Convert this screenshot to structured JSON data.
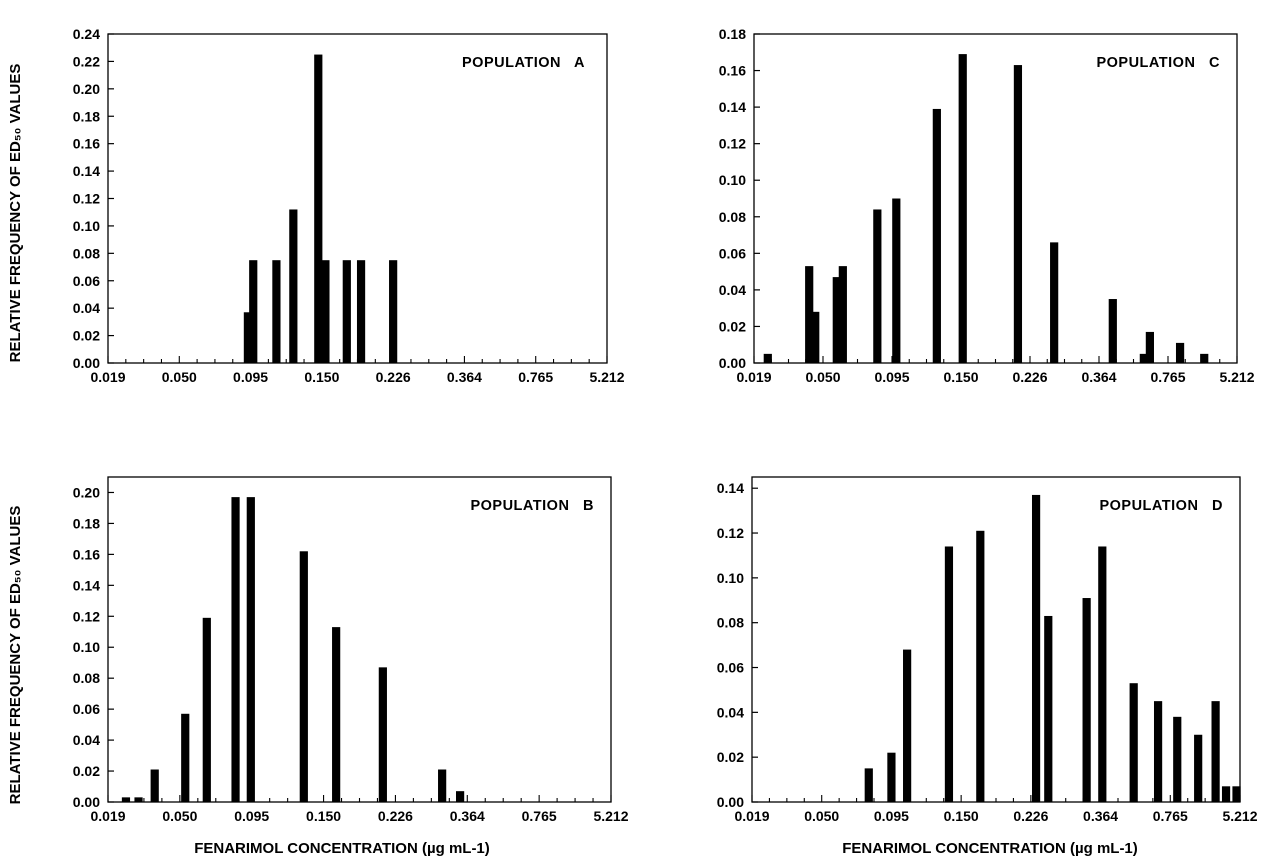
{
  "ylabel_top": "RELATIVE FREQUENCY OF ED₅₀ VALUES",
  "ylabel_bottom": "RELATIVE FREQUENCY OF ED₅₀ VALUES",
  "xlabel_left": "FENARIMOL CONCENTRATION (µg mL-1)",
  "xlabel_right": "FENARIMOL CONCENTRATION (µg mL-1)",
  "chart_data": [
    {
      "type": "bar",
      "panel_label": "POPULATION   A",
      "x_tick_labels": [
        "0.019",
        "0.050",
        "0.095",
        "0.150",
        "0.226",
        "0.364",
        "0.765",
        "5.212"
      ],
      "y_tick_labels": [
        "0.00",
        "0.02",
        "0.04",
        "0.06",
        "0.08",
        "0.10",
        "0.12",
        "0.14",
        "0.16",
        "0.18",
        "0.20",
        "0.22",
        "0.24"
      ],
      "ylim": [
        0,
        0.24
      ],
      "x_index_range": [
        0,
        28
      ],
      "x_tick_index_step": 4,
      "bars": [
        {
          "x": 7.85,
          "value": 0.037
        },
        {
          "x": 8.15,
          "value": 0.075
        },
        {
          "x": 9.45,
          "value": 0.075
        },
        {
          "x": 10.4,
          "value": 0.112
        },
        {
          "x": 11.8,
          "value": 0.225
        },
        {
          "x": 12.2,
          "value": 0.075
        },
        {
          "x": 13.4,
          "value": 0.075
        },
        {
          "x": 14.2,
          "value": 0.075
        },
        {
          "x": 16.0,
          "value": 0.075
        }
      ]
    },
    {
      "type": "bar",
      "panel_label": "POPULATION   C",
      "x_tick_labels": [
        "0.019",
        "0.050",
        "0.095",
        "0.150",
        "0.226",
        "0.364",
        "0.765",
        "5.212"
      ],
      "y_tick_labels": [
        "0.00",
        "0.02",
        "0.04",
        "0.06",
        "0.08",
        "0.10",
        "0.12",
        "0.14",
        "0.16",
        "0.18"
      ],
      "ylim": [
        0,
        0.18
      ],
      "x_index_range": [
        0,
        28
      ],
      "x_tick_index_step": 4,
      "bars": [
        {
          "x": 0.8,
          "value": 0.005
        },
        {
          "x": 3.2,
          "value": 0.053
        },
        {
          "x": 3.55,
          "value": 0.028
        },
        {
          "x": 4.8,
          "value": 0.047
        },
        {
          "x": 5.15,
          "value": 0.053
        },
        {
          "x": 7.15,
          "value": 0.084
        },
        {
          "x": 8.25,
          "value": 0.09
        },
        {
          "x": 10.6,
          "value": 0.139
        },
        {
          "x": 12.1,
          "value": 0.169
        },
        {
          "x": 15.3,
          "value": 0.163
        },
        {
          "x": 17.4,
          "value": 0.066
        },
        {
          "x": 20.8,
          "value": 0.035
        },
        {
          "x": 22.6,
          "value": 0.005
        },
        {
          "x": 22.95,
          "value": 0.017
        },
        {
          "x": 24.7,
          "value": 0.011
        },
        {
          "x": 26.1,
          "value": 0.005
        }
      ]
    },
    {
      "type": "bar",
      "panel_label": "POPULATION   B",
      "x_tick_labels": [
        "0.019",
        "0.050",
        "0.095",
        "0.150",
        "0.226",
        "0.364",
        "0.765",
        "5.212"
      ],
      "y_tick_labels": [
        "0.00",
        "0.02",
        "0.04",
        "0.06",
        "0.08",
        "0.10",
        "0.12",
        "0.14",
        "0.16",
        "0.18",
        "0.20"
      ],
      "ylim": [
        0,
        0.21
      ],
      "x_index_range": [
        0,
        28
      ],
      "x_tick_index_step": 4,
      "bars": [
        {
          "x": 1.0,
          "value": 0.003
        },
        {
          "x": 1.7,
          "value": 0.003
        },
        {
          "x": 2.6,
          "value": 0.021
        },
        {
          "x": 4.3,
          "value": 0.057
        },
        {
          "x": 5.5,
          "value": 0.119
        },
        {
          "x": 7.1,
          "value": 0.197
        },
        {
          "x": 7.95,
          "value": 0.197
        },
        {
          "x": 10.9,
          "value": 0.162
        },
        {
          "x": 12.7,
          "value": 0.113
        },
        {
          "x": 15.3,
          "value": 0.087
        },
        {
          "x": 18.6,
          "value": 0.021
        },
        {
          "x": 19.6,
          "value": 0.007
        }
      ]
    },
    {
      "type": "bar",
      "panel_label": "POPULATION   D",
      "x_tick_labels": [
        "0.019",
        "0.050",
        "0.095",
        "0.150",
        "0.226",
        "0.364",
        "0.765",
        "5.212"
      ],
      "y_tick_labels": [
        "0.00",
        "0.02",
        "0.04",
        "0.06",
        "0.08",
        "0.10",
        "0.12",
        "0.14"
      ],
      "ylim": [
        0,
        0.145
      ],
      "x_index_range": [
        0,
        28
      ],
      "x_tick_index_step": 4,
      "bars": [
        {
          "x": 6.7,
          "value": 0.015
        },
        {
          "x": 8.0,
          "value": 0.022
        },
        {
          "x": 8.9,
          "value": 0.068
        },
        {
          "x": 11.3,
          "value": 0.114
        },
        {
          "x": 13.1,
          "value": 0.121
        },
        {
          "x": 16.3,
          "value": 0.137
        },
        {
          "x": 17.0,
          "value": 0.083
        },
        {
          "x": 19.2,
          "value": 0.091
        },
        {
          "x": 20.1,
          "value": 0.114
        },
        {
          "x": 21.9,
          "value": 0.053
        },
        {
          "x": 23.3,
          "value": 0.045
        },
        {
          "x": 24.4,
          "value": 0.038
        },
        {
          "x": 25.6,
          "value": 0.03
        },
        {
          "x": 26.6,
          "value": 0.045
        },
        {
          "x": 27.2,
          "value": 0.007
        },
        {
          "x": 27.8,
          "value": 0.007
        }
      ]
    }
  ]
}
